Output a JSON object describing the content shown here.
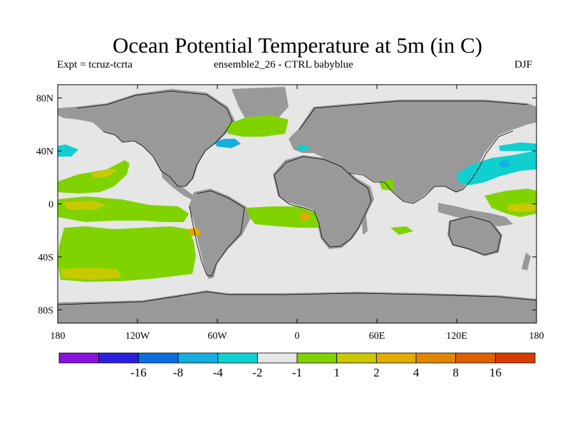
{
  "title": "Ocean Potential Temperature at 5m (in C)",
  "subtitle_left": "Expt = tcruz-tcrta",
  "subtitle_center": "ensemble2_26 - CTRL babyblue",
  "subtitle_right": "DJF",
  "map": {
    "projection": "cylindrical equidistant",
    "lon_range": [
      -180,
      180
    ],
    "lat_range": [
      -90,
      90
    ],
    "lat_ticks": [
      {
        "value": 80,
        "label": "80N"
      },
      {
        "value": 40,
        "label": "40N"
      },
      {
        "value": 0,
        "label": "0"
      },
      {
        "value": -40,
        "label": "40S"
      },
      {
        "value": -80,
        "label": "80S"
      }
    ],
    "lon_ticks": [
      {
        "value": -180,
        "label": "180"
      },
      {
        "value": -120,
        "label": "120W"
      },
      {
        "value": -60,
        "label": "60W"
      },
      {
        "value": 0,
        "label": "0"
      },
      {
        "value": 60,
        "label": "60E"
      },
      {
        "value": 120,
        "label": "120E"
      },
      {
        "value": 180,
        "label": "180"
      }
    ],
    "colors": {
      "background": "#e6e6e6",
      "land": "#999999",
      "coastline": "#000000"
    }
  },
  "colorbar": {
    "colors": [
      "#8a12e0",
      "#2a1fe0",
      "#0a6fe0",
      "#15aee0",
      "#10cfcf",
      "#e6e6e6",
      "#80d300",
      "#c9c900",
      "#e2ab00",
      "#e28600",
      "#e06000",
      "#d83c00"
    ],
    "labels": [
      "-16",
      "-8",
      "-4",
      "-2",
      "-1",
      "1",
      "2",
      "4",
      "8",
      "16"
    ]
  }
}
